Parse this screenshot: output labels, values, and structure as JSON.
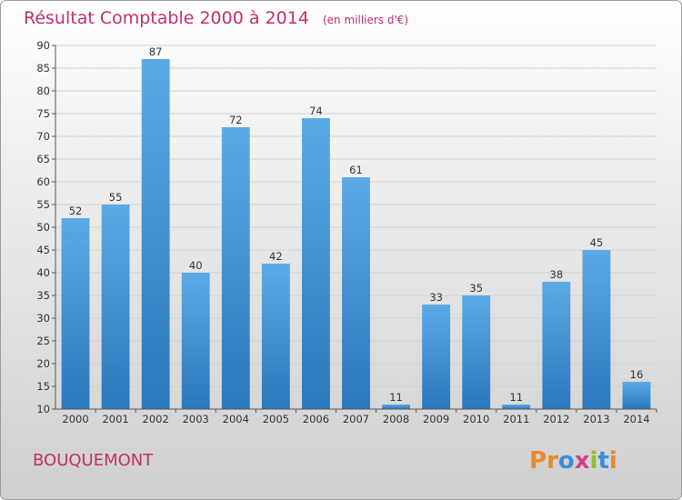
{
  "chart_data": {
    "type": "bar",
    "title": "Résultat Comptable 2000 à 2014",
    "subtitle": "(en milliers d'€)",
    "categories": [
      "2000",
      "2001",
      "2002",
      "2003",
      "2004",
      "2005",
      "2006",
      "2007",
      "2008",
      "2009",
      "2010",
      "2011",
      "2012",
      "2013",
      "2014"
    ],
    "values": [
      52,
      55,
      87,
      40,
      72,
      42,
      74,
      61,
      11,
      33,
      35,
      11,
      38,
      45,
      16
    ],
    "ylim": [
      10,
      90
    ],
    "yticks": [
      10,
      15,
      20,
      25,
      30,
      35,
      40,
      45,
      50,
      55,
      60,
      65,
      70,
      75,
      80,
      85,
      90
    ],
    "xlabel": "",
    "ylabel": "",
    "grid": true,
    "colors": {
      "bar_top": "#5aaae6",
      "bar_bottom": "#2a78bd",
      "title": "#c0306a"
    }
  },
  "commune": "BOUQUEMONT",
  "logo": {
    "text": "Proxiti",
    "letters": [
      "P",
      "r",
      "o",
      "x",
      "i",
      "t",
      "i"
    ],
    "colors": [
      "#e8892a",
      "#e8892a",
      "#3a8fd6",
      "#d93a8a",
      "#8fbf2a",
      "#3a8fd6",
      "#e8892a"
    ]
  }
}
